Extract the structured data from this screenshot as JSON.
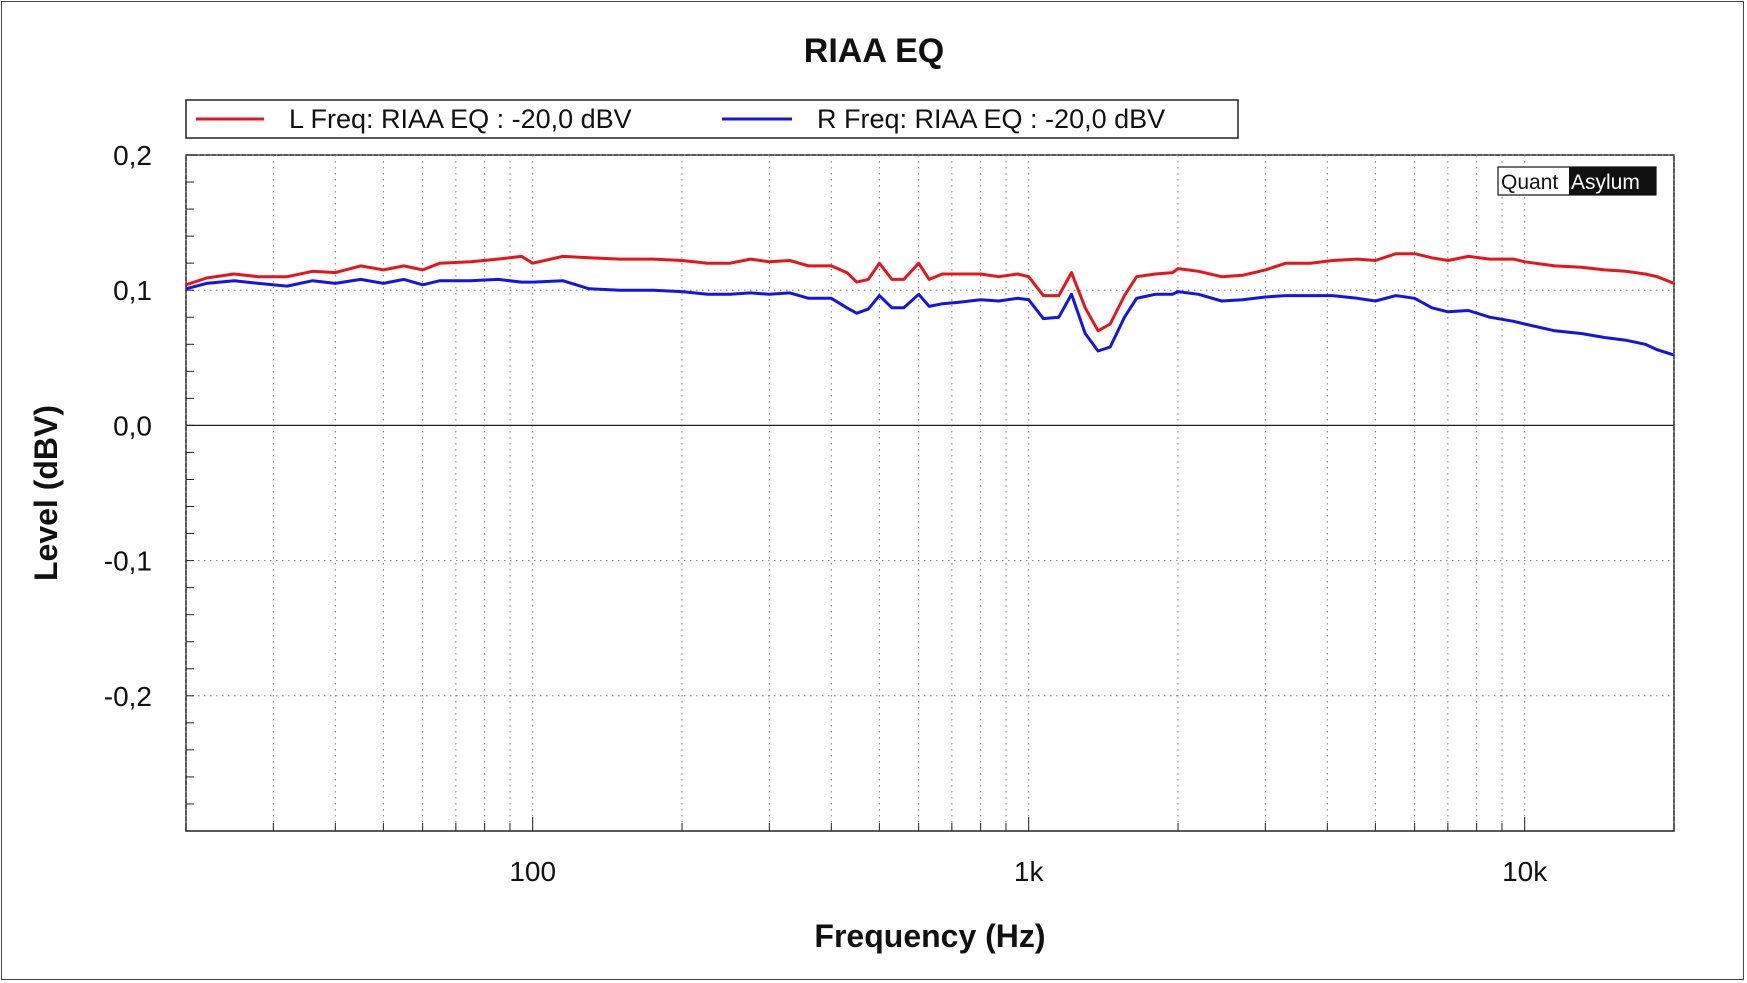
{
  "chart_data": {
    "type": "line",
    "title": "RIAA EQ",
    "xlabel": "Frequency (Hz)",
    "ylabel": "Level (dBV)",
    "x_scale": "log",
    "xlim": [
      20,
      20000
    ],
    "ylim": [
      -0.3,
      0.2
    ],
    "grid": true,
    "legend_position": "top",
    "x_ticks": [
      {
        "value": 100,
        "label": "100"
      },
      {
        "value": 1000,
        "label": "1k"
      },
      {
        "value": 10000,
        "label": "10k"
      }
    ],
    "y_ticks": [
      {
        "value": 0.2,
        "label": "0,2"
      },
      {
        "value": 0.1,
        "label": "0,1"
      },
      {
        "value": 0.0,
        "label": "0,0"
      },
      {
        "value": -0.1,
        "label": "-0,1"
      },
      {
        "value": -0.2,
        "label": "-0,2"
      }
    ],
    "logo": {
      "part1": "Quant",
      "part2": "Asylum"
    },
    "series": [
      {
        "name": "L Freq: RIAA EQ : -20,0 dBV",
        "color": "#e8141c",
        "points": [
          [
            20,
            0.104
          ],
          [
            22,
            0.109
          ],
          [
            25,
            0.112
          ],
          [
            28,
            0.11
          ],
          [
            32,
            0.11
          ],
          [
            36,
            0.114
          ],
          [
            40,
            0.113
          ],
          [
            45,
            0.118
          ],
          [
            50,
            0.115
          ],
          [
            55,
            0.118
          ],
          [
            60,
            0.115
          ],
          [
            65,
            0.12
          ],
          [
            75,
            0.121
          ],
          [
            85,
            0.123
          ],
          [
            95,
            0.125
          ],
          [
            100,
            0.12
          ],
          [
            115,
            0.125
          ],
          [
            130,
            0.124
          ],
          [
            150,
            0.123
          ],
          [
            175,
            0.123
          ],
          [
            200,
            0.122
          ],
          [
            225,
            0.12
          ],
          [
            250,
            0.12
          ],
          [
            275,
            0.123
          ],
          [
            300,
            0.121
          ],
          [
            330,
            0.122
          ],
          [
            360,
            0.118
          ],
          [
            400,
            0.118
          ],
          [
            430,
            0.113
          ],
          [
            450,
            0.106
          ],
          [
            475,
            0.108
          ],
          [
            500,
            0.12
          ],
          [
            530,
            0.108
          ],
          [
            560,
            0.108
          ],
          [
            600,
            0.12
          ],
          [
            630,
            0.108
          ],
          [
            670,
            0.112
          ],
          [
            720,
            0.112
          ],
          [
            800,
            0.112
          ],
          [
            870,
            0.11
          ],
          [
            950,
            0.112
          ],
          [
            1000,
            0.11
          ],
          [
            1070,
            0.096
          ],
          [
            1150,
            0.096
          ],
          [
            1220,
            0.113
          ],
          [
            1300,
            0.087
          ],
          [
            1380,
            0.07
          ],
          [
            1460,
            0.075
          ],
          [
            1560,
            0.096
          ],
          [
            1650,
            0.11
          ],
          [
            1800,
            0.112
          ],
          [
            1950,
            0.113
          ],
          [
            2000,
            0.116
          ],
          [
            2200,
            0.114
          ],
          [
            2450,
            0.11
          ],
          [
            2700,
            0.111
          ],
          [
            3000,
            0.115
          ],
          [
            3300,
            0.12
          ],
          [
            3700,
            0.12
          ],
          [
            4100,
            0.122
          ],
          [
            4600,
            0.123
          ],
          [
            5000,
            0.122
          ],
          [
            5500,
            0.127
          ],
          [
            6000,
            0.127
          ],
          [
            6500,
            0.124
          ],
          [
            7000,
            0.122
          ],
          [
            7700,
            0.125
          ],
          [
            8500,
            0.123
          ],
          [
            9500,
            0.123
          ],
          [
            10000,
            0.121
          ],
          [
            11500,
            0.118
          ],
          [
            13000,
            0.117
          ],
          [
            14500,
            0.115
          ],
          [
            16000,
            0.114
          ],
          [
            17500,
            0.112
          ],
          [
            18500,
            0.11
          ],
          [
            20000,
            0.105
          ]
        ]
      },
      {
        "name": "R Freq: RIAA EQ : -20,0 dBV",
        "color": "#1414e6",
        "points": [
          [
            20,
            0.101
          ],
          [
            22,
            0.105
          ],
          [
            25,
            0.107
          ],
          [
            28,
            0.105
          ],
          [
            32,
            0.103
          ],
          [
            36,
            0.107
          ],
          [
            40,
            0.105
          ],
          [
            45,
            0.108
          ],
          [
            50,
            0.105
          ],
          [
            55,
            0.108
          ],
          [
            60,
            0.104
          ],
          [
            65,
            0.107
          ],
          [
            75,
            0.107
          ],
          [
            85,
            0.108
          ],
          [
            95,
            0.106
          ],
          [
            100,
            0.106
          ],
          [
            115,
            0.107
          ],
          [
            130,
            0.101
          ],
          [
            150,
            0.1
          ],
          [
            175,
            0.1
          ],
          [
            200,
            0.099
          ],
          [
            225,
            0.097
          ],
          [
            250,
            0.097
          ],
          [
            275,
            0.098
          ],
          [
            300,
            0.097
          ],
          [
            330,
            0.098
          ],
          [
            360,
            0.094
          ],
          [
            400,
            0.094
          ],
          [
            430,
            0.087
          ],
          [
            450,
            0.083
          ],
          [
            475,
            0.086
          ],
          [
            500,
            0.096
          ],
          [
            530,
            0.087
          ],
          [
            560,
            0.087
          ],
          [
            600,
            0.097
          ],
          [
            630,
            0.088
          ],
          [
            670,
            0.09
          ],
          [
            720,
            0.091
          ],
          [
            800,
            0.093
          ],
          [
            870,
            0.092
          ],
          [
            950,
            0.094
          ],
          [
            1000,
            0.093
          ],
          [
            1070,
            0.079
          ],
          [
            1150,
            0.08
          ],
          [
            1220,
            0.097
          ],
          [
            1300,
            0.068
          ],
          [
            1380,
            0.055
          ],
          [
            1460,
            0.058
          ],
          [
            1560,
            0.08
          ],
          [
            1650,
            0.094
          ],
          [
            1800,
            0.097
          ],
          [
            1950,
            0.097
          ],
          [
            2000,
            0.099
          ],
          [
            2200,
            0.097
          ],
          [
            2450,
            0.092
          ],
          [
            2700,
            0.093
          ],
          [
            3000,
            0.095
          ],
          [
            3300,
            0.096
          ],
          [
            3700,
            0.096
          ],
          [
            4100,
            0.096
          ],
          [
            4600,
            0.094
          ],
          [
            5000,
            0.092
          ],
          [
            5500,
            0.096
          ],
          [
            6000,
            0.094
          ],
          [
            6500,
            0.087
          ],
          [
            7000,
            0.084
          ],
          [
            7700,
            0.085
          ],
          [
            8500,
            0.08
          ],
          [
            9500,
            0.077
          ],
          [
            10000,
            0.075
          ],
          [
            11500,
            0.07
          ],
          [
            13000,
            0.068
          ],
          [
            14500,
            0.065
          ],
          [
            16000,
            0.063
          ],
          [
            17500,
            0.06
          ],
          [
            18500,
            0.056
          ],
          [
            20000,
            0.052
          ]
        ]
      }
    ]
  }
}
